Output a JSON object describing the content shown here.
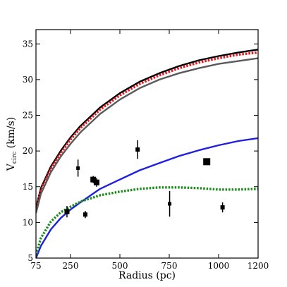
{
  "chart_data": {
    "type": "line",
    "xlabel": "Radius (pc)",
    "ylabel_main": "V",
    "ylabel_sub": "circ",
    "ylabel_unit": " (km/s)",
    "xlim": [
      75,
      1200
    ],
    "ylim": [
      5,
      37
    ],
    "xticks": [
      75,
      250,
      500,
      750,
      1000,
      1200
    ],
    "xtick_labels": [
      "75",
      "250",
      "500",
      "750",
      "1000",
      "1200"
    ],
    "yticks": [
      5,
      10,
      15,
      20,
      25,
      30,
      35
    ],
    "ytick_labels": [
      "5",
      "10",
      "15",
      "20",
      "25",
      "30",
      "35"
    ],
    "grid": false,
    "series": [
      {
        "style": "solid",
        "color": "#000000",
        "x": [
          75,
          100,
          150,
          200,
          250,
          300,
          400,
          500,
          600,
          700,
          800,
          900,
          1000,
          1100,
          1200
        ],
        "y": [
          12.0,
          14.8,
          17.8,
          20.0,
          21.9,
          23.5,
          26.1,
          28.1,
          29.7,
          30.9,
          31.9,
          32.7,
          33.3,
          33.8,
          34.2
        ]
      },
      {
        "style": "dotted",
        "color": "#e8141c",
        "x": [
          75,
          100,
          150,
          200,
          250,
          300,
          400,
          500,
          600,
          700,
          800,
          900,
          1000,
          1100,
          1200
        ],
        "y": [
          11.7,
          14.5,
          17.5,
          19.7,
          21.6,
          23.2,
          25.8,
          27.8,
          29.4,
          30.6,
          31.6,
          32.4,
          33.0,
          33.5,
          33.8
        ]
      },
      {
        "style": "solid",
        "color": "#5a5a5a",
        "x": [
          75,
          100,
          150,
          200,
          250,
          300,
          400,
          500,
          600,
          700,
          800,
          900,
          1000,
          1100,
          1200
        ],
        "y": [
          11.3,
          14.0,
          17.0,
          19.2,
          21.0,
          22.6,
          25.2,
          27.2,
          28.8,
          30.0,
          30.9,
          31.6,
          32.2,
          32.6,
          33.0
        ]
      },
      {
        "style": "solid",
        "color": "#1f1fe0",
        "x": [
          75,
          100,
          150,
          200,
          250,
          300,
          400,
          500,
          600,
          700,
          800,
          900,
          1000,
          1100,
          1200
        ],
        "y": [
          5.0,
          6.7,
          9.0,
          10.6,
          11.8,
          12.8,
          14.7,
          16.0,
          17.3,
          18.3,
          19.3,
          20.1,
          20.8,
          21.4,
          21.8
        ]
      },
      {
        "style": "dotted",
        "color": "#1a8c1a",
        "x": [
          75,
          100,
          150,
          200,
          250,
          300,
          400,
          500,
          600,
          700,
          800,
          900,
          1000,
          1100,
          1200
        ],
        "y": [
          5.5,
          7.8,
          10.1,
          11.4,
          12.2,
          12.9,
          13.8,
          14.3,
          14.7,
          14.9,
          14.9,
          14.8,
          14.6,
          14.6,
          14.7
        ]
      }
    ],
    "points": [
      {
        "x": 232,
        "y": 11.5,
        "yerr": 0.8,
        "size": 7
      },
      {
        "x": 288,
        "y": 17.6,
        "yerr": 1.2,
        "size": 5
      },
      {
        "x": 325,
        "y": 11.1,
        "yerr": 0.5,
        "size": 6
      },
      {
        "x": 365,
        "y": 16.0,
        "yerr": 0.5,
        "size": 8
      },
      {
        "x": 382,
        "y": 15.6,
        "yerr": 0.6,
        "size": 8
      },
      {
        "x": 590,
        "y": 20.2,
        "yerr": 1.3,
        "size": 6
      },
      {
        "x": 752,
        "y": 12.6,
        "yerr": 1.8,
        "size": 5
      },
      {
        "x": 940,
        "y": 18.5,
        "yerr": 0.3,
        "size": 10
      },
      {
        "x": 1020,
        "y": 12.1,
        "yerr": 0.7,
        "size": 6
      }
    ]
  }
}
